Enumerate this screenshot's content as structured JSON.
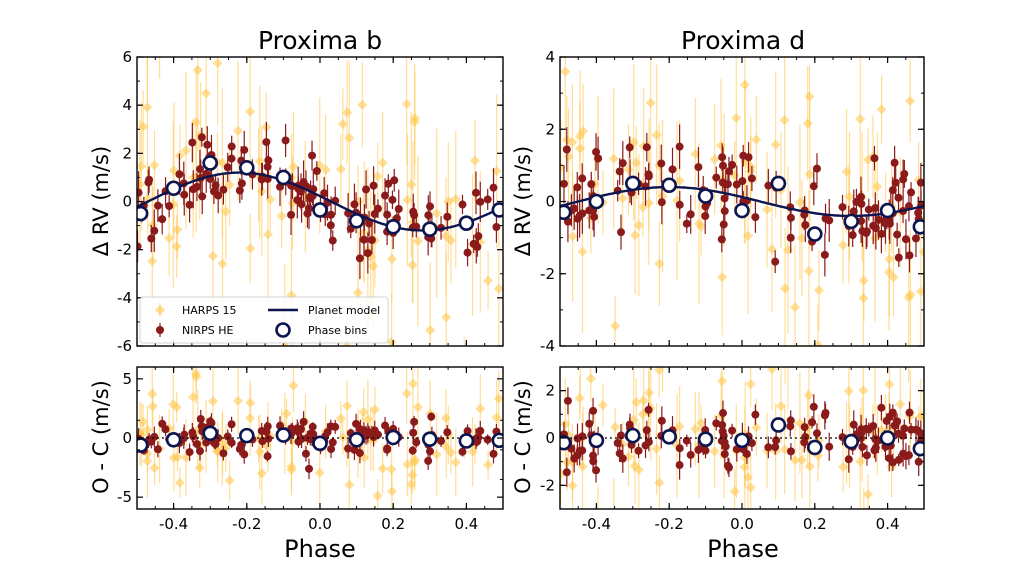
{
  "chart_data": [
    {
      "type": "scatter",
      "panel": "Proxima b",
      "title": "Proxima b",
      "xlabel": "Phase",
      "top": {
        "ylabel": "Δ RV (m/s)",
        "xlim": [
          -0.5,
          0.5
        ],
        "ylim": [
          -6,
          6
        ],
        "yticks": [
          "-6",
          "-4",
          "-2",
          "0",
          "2",
          "4",
          "6"
        ],
        "ytick_values": [
          -6,
          -4,
          -2,
          0,
          2,
          4,
          6
        ],
        "model": {
          "name": "Planet model",
          "amplitude": 1.2,
          "peak_phase": -0.22,
          "color": "#0b1550"
        },
        "phase_bins": {
          "name": "Phase bins",
          "x": [
            -0.49,
            -0.4,
            -0.3,
            -0.2,
            -0.1,
            0.0,
            0.1,
            0.2,
            0.3,
            0.4,
            0.49
          ],
          "y": [
            -0.5,
            0.55,
            1.6,
            1.4,
            1.0,
            -0.35,
            -0.8,
            -1.05,
            -1.15,
            -0.9,
            -0.35
          ]
        }
      },
      "bottom": {
        "ylabel": "O - C (m/s)",
        "ylim": [
          -6,
          6
        ],
        "yticks": [
          "-5",
          "0",
          "5"
        ],
        "ytick_values": [
          -5,
          0,
          5
        ],
        "phase_bins": {
          "x": [
            -0.49,
            -0.4,
            -0.3,
            -0.2,
            -0.1,
            0.0,
            0.1,
            0.2,
            0.3,
            0.4,
            0.49
          ],
          "y": [
            -0.6,
            -0.15,
            0.4,
            0.2,
            0.25,
            -0.45,
            -0.15,
            0.05,
            -0.1,
            -0.25,
            -0.2
          ]
        }
      },
      "xticks": [
        "-0.4",
        "-0.2",
        "0.0",
        "0.2",
        "0.4"
      ],
      "xtick_values": [
        -0.4,
        -0.2,
        0.0,
        0.2,
        0.4
      ],
      "series": [
        {
          "name": "HARPS 15",
          "marker": "diamond",
          "color": "#ffc445",
          "n_points": 90,
          "scatter_rv": 2.6,
          "scatter_oc": 2.4
        },
        {
          "name": "NIRPS HE",
          "marker": "circle",
          "color": "#8b1a1a",
          "n_points": 120,
          "scatter_rv": 0.75,
          "scatter_oc": 0.75
        }
      ],
      "legend": {
        "location": "lower-left",
        "entries": [
          "HARPS 15",
          "NIRPS HE",
          "Planet model",
          "Phase bins"
        ]
      }
    },
    {
      "type": "scatter",
      "panel": "Proxima d",
      "title": "Proxima d",
      "xlabel": "Phase",
      "top": {
        "ylabel": "Δ RV (m/s)",
        "xlim": [
          -0.5,
          0.5
        ],
        "ylim": [
          -4,
          4
        ],
        "yticks": [
          "-4",
          "-2",
          "0",
          "2",
          "4"
        ],
        "ytick_values": [
          -4,
          -2,
          0,
          2,
          4
        ],
        "model": {
          "name": "Planet model",
          "amplitude": 0.4,
          "peak_phase": -0.2,
          "color": "#0b1550"
        },
        "phase_bins": {
          "name": "Phase bins",
          "x": [
            -0.49,
            -0.4,
            -0.3,
            -0.2,
            -0.1,
            0.0,
            0.1,
            0.2,
            0.3,
            0.4,
            0.49
          ],
          "y": [
            -0.3,
            0.0,
            0.5,
            0.45,
            0.15,
            -0.25,
            0.5,
            -0.9,
            -0.55,
            -0.25,
            -0.7
          ]
        }
      },
      "bottom": {
        "ylabel": "O - C (m/s)",
        "ylim": [
          -3,
          3
        ],
        "yticks": [
          "-2",
          "0",
          "2"
        ],
        "ytick_values": [
          -2,
          0,
          2
        ],
        "phase_bins": {
          "x": [
            -0.49,
            -0.4,
            -0.3,
            -0.2,
            -0.1,
            0.0,
            0.1,
            0.2,
            0.3,
            0.4,
            0.49
          ],
          "y": [
            -0.2,
            -0.1,
            0.1,
            0.05,
            -0.05,
            -0.1,
            0.55,
            -0.4,
            -0.15,
            0.0,
            -0.45
          ]
        }
      },
      "xticks": [
        "-0.4",
        "-0.2",
        "0.0",
        "0.2",
        "0.4"
      ],
      "xtick_values": [
        -0.4,
        -0.2,
        0.0,
        0.2,
        0.4
      ],
      "series": [
        {
          "name": "HARPS 15",
          "marker": "diamond",
          "color": "#ffc445",
          "n_points": 90,
          "scatter_rv": 1.7,
          "scatter_oc": 1.6
        },
        {
          "name": "NIRPS HE",
          "marker": "circle",
          "color": "#8b1a1a",
          "n_points": 120,
          "scatter_rv": 0.7,
          "scatter_oc": 0.7
        }
      ]
    }
  ]
}
